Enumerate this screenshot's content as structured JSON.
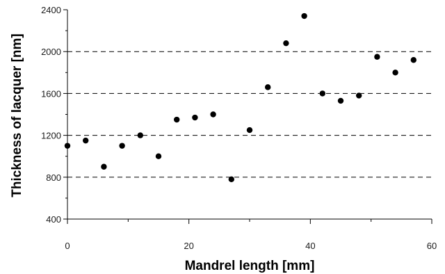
{
  "chart_data": {
    "type": "scatter",
    "title": "",
    "xlabel": "Mandrel length [mm]",
    "ylabel": "Thickness of lacquer [nm]",
    "xlim": [
      0,
      60
    ],
    "ylim": [
      400,
      2400
    ],
    "x_ticks": [
      0,
      20,
      40,
      60
    ],
    "y_ticks": [
      400,
      800,
      1200,
      1600,
      2000,
      2400
    ],
    "y_gridlines": [
      800,
      1200,
      1600,
      2000
    ],
    "grid": "horizontal dashed",
    "legend": "none",
    "marker_color": "#000000",
    "series": [
      {
        "x": [
          0,
          3,
          6,
          9,
          12,
          15,
          18,
          21,
          24,
          27,
          30,
          33,
          36,
          39,
          42,
          45,
          48,
          51,
          54,
          57
        ],
        "y": [
          1100,
          1150,
          900,
          1100,
          1200,
          1000,
          1350,
          1370,
          1400,
          780,
          1250,
          1660,
          2080,
          2340,
          1600,
          1530,
          1580,
          1950,
          1800,
          1920
        ]
      }
    ]
  }
}
